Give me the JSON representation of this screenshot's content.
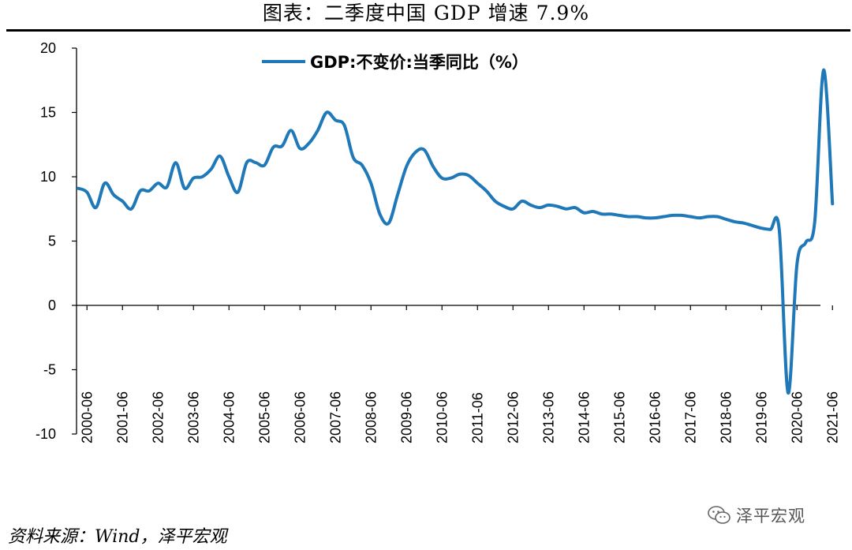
{
  "figure": {
    "title": "图表：二季度中国 GDP 增速 7.9%",
    "source": "资料来源：Wind，泽平宏观",
    "watermark": "泽平宏观",
    "watermark_icon": "wechat-icon"
  },
  "chart_data": {
    "type": "line",
    "title": "图表：二季度中国 GDP 增速 7.9%",
    "xlabel": "",
    "ylabel": "",
    "ylim": [
      -10,
      20
    ],
    "yticks": [
      -10,
      -5,
      0,
      5,
      10,
      15,
      20
    ],
    "grid": false,
    "legend_position": "top-center",
    "line_color": "#1F78B8",
    "x_tick_labels": [
      "2000-06",
      "2001-06",
      "2002-06",
      "2003-06",
      "2004-06",
      "2005-06",
      "2006-06",
      "2007-06",
      "2008-06",
      "2009-06",
      "2010-06",
      "2011-06",
      "2012-06",
      "2013-06",
      "2014-06",
      "2015-06",
      "2016-06",
      "2017-06",
      "2018-06",
      "2019-06",
      "2020-06",
      "2021-06"
    ],
    "series": [
      {
        "name": "GDP:不变价:当季同比（%）",
        "x": [
          "2000-03",
          "2000-06",
          "2000-09",
          "2000-12",
          "2001-03",
          "2001-06",
          "2001-09",
          "2001-12",
          "2002-03",
          "2002-06",
          "2002-09",
          "2002-12",
          "2003-03",
          "2003-06",
          "2003-09",
          "2003-12",
          "2004-03",
          "2004-06",
          "2004-09",
          "2004-12",
          "2005-03",
          "2005-06",
          "2005-09",
          "2005-12",
          "2006-03",
          "2006-06",
          "2006-09",
          "2006-12",
          "2007-03",
          "2007-06",
          "2007-09",
          "2007-12",
          "2008-03",
          "2008-06",
          "2008-09",
          "2008-12",
          "2009-03",
          "2009-06",
          "2009-09",
          "2009-12",
          "2010-03",
          "2010-06",
          "2010-09",
          "2010-12",
          "2011-03",
          "2011-06",
          "2011-09",
          "2011-12",
          "2012-03",
          "2012-06",
          "2012-09",
          "2012-12",
          "2013-03",
          "2013-06",
          "2013-09",
          "2013-12",
          "2014-03",
          "2014-06",
          "2014-09",
          "2014-12",
          "2015-03",
          "2015-06",
          "2015-09",
          "2015-12",
          "2016-03",
          "2016-06",
          "2016-09",
          "2016-12",
          "2017-03",
          "2017-06",
          "2017-09",
          "2017-12",
          "2018-03",
          "2018-06",
          "2018-09",
          "2018-12",
          "2019-03",
          "2019-06",
          "2019-09",
          "2019-12",
          "2020-03",
          "2020-06",
          "2020-09",
          "2020-12",
          "2021-03",
          "2021-06"
        ],
        "values": [
          9.1,
          8.8,
          7.6,
          9.5,
          8.6,
          8.1,
          7.5,
          8.9,
          8.9,
          9.5,
          9.2,
          11.1,
          9.1,
          9.9,
          10.0,
          10.6,
          11.6,
          10.0,
          8.8,
          11.1,
          11.1,
          10.9,
          12.3,
          12.4,
          13.6,
          12.2,
          12.6,
          13.6,
          15.0,
          14.4,
          14.0,
          11.5,
          10.9,
          9.5,
          7.1,
          6.4,
          8.6,
          10.8,
          11.9,
          12.1,
          10.8,
          9.9,
          9.9,
          10.2,
          10.1,
          9.5,
          8.9,
          8.1,
          7.7,
          7.5,
          8.1,
          7.8,
          7.6,
          7.8,
          7.7,
          7.5,
          7.6,
          7.2,
          7.3,
          7.1,
          7.1,
          7.0,
          6.9,
          6.9,
          6.8,
          6.8,
          6.9,
          7.0,
          7.0,
          6.9,
          6.8,
          6.9,
          6.9,
          6.7,
          6.5,
          6.4,
          6.2,
          6.0,
          5.9,
          5.9,
          -6.8,
          3.2,
          4.9,
          6.5,
          18.3,
          7.9
        ]
      }
    ]
  }
}
